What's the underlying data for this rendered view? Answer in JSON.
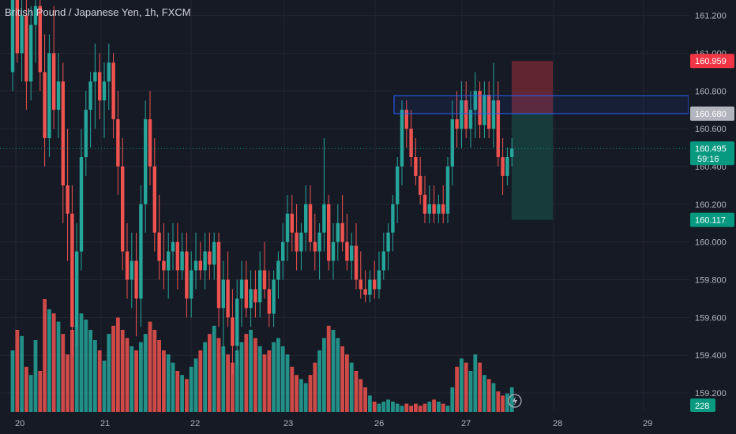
{
  "header": {
    "title": "British Pound / Japanese Yen, 1h, FXCM"
  },
  "colors": {
    "background": "#161a25",
    "up": "#26a69a",
    "down": "#ef5350",
    "grid": "#242733",
    "zone": "#2962ff",
    "stop": "#7a2a36",
    "target": "#17423f"
  },
  "chart_data": {
    "type": "candlestick",
    "title": "British Pound / Japanese Yen, 1h, FXCM",
    "x_tick_labels": [
      "20",
      "21",
      "22",
      "23",
      "26",
      "27",
      "28",
      "29"
    ],
    "y_tick_labels": [
      "161.200",
      "161.000",
      "160.800",
      "160.600",
      "160.400",
      "160.200",
      "160.000",
      "159.800",
      "159.600",
      "159.400",
      "159.200"
    ],
    "ylim": [
      159.15,
      161.24
    ],
    "price_badges": [
      {
        "label": "160.959",
        "value": 160.959,
        "color": "#f23645"
      },
      {
        "label": "160.680",
        "value": 160.68,
        "color": "#b2b5be"
      },
      {
        "label": "160.495",
        "value": 160.495,
        "color": "#089981",
        "sub": "59:16"
      },
      {
        "label": "160.117",
        "value": 160.117,
        "color": "#089981"
      }
    ],
    "volume_badge": "228",
    "resistance_zone": [
      160.68,
      160.775
    ],
    "position": {
      "entry": 160.68,
      "stop": 160.959,
      "target": 160.117
    },
    "last_price": 160.495,
    "candles": [
      [
        160.9,
        161.45,
        160.8,
        161.35
      ],
      [
        161.35,
        161.45,
        160.95,
        161.0
      ],
      [
        161.0,
        161.3,
        160.85,
        161.2
      ],
      [
        161.2,
        161.35,
        160.7,
        160.85
      ],
      [
        160.85,
        161.25,
        160.75,
        161.15
      ],
      [
        161.15,
        161.4,
        160.95,
        161.25
      ],
      [
        161.25,
        161.4,
        160.8,
        160.9
      ],
      [
        160.9,
        161.1,
        160.4,
        160.55
      ],
      [
        160.55,
        161.1,
        160.45,
        161.0
      ],
      [
        161.0,
        161.25,
        160.6,
        160.7
      ],
      [
        160.7,
        161.0,
        160.55,
        160.85
      ],
      [
        160.85,
        160.95,
        160.1,
        160.3
      ],
      [
        160.3,
        160.6,
        159.9,
        160.15
      ],
      [
        160.15,
        160.3,
        159.4,
        159.55
      ],
      [
        159.55,
        160.1,
        159.45,
        159.95
      ],
      [
        159.95,
        160.6,
        159.85,
        160.45
      ],
      [
        160.45,
        160.8,
        160.35,
        160.7
      ],
      [
        160.7,
        160.9,
        160.5,
        160.85
      ],
      [
        160.85,
        161.05,
        160.6,
        160.9
      ],
      [
        160.9,
        161.0,
        160.65,
        160.75
      ],
      [
        160.75,
        160.95,
        160.55,
        160.85
      ],
      [
        160.85,
        161.05,
        160.7,
        160.95
      ],
      [
        160.95,
        161.0,
        160.55,
        160.65
      ],
      [
        160.65,
        160.8,
        160.25,
        160.4
      ],
      [
        160.4,
        160.55,
        159.85,
        159.95
      ],
      [
        159.95,
        160.1,
        159.7,
        159.8
      ],
      [
        159.8,
        160.05,
        159.65,
        159.9
      ],
      [
        159.9,
        160.05,
        159.5,
        159.7
      ],
      [
        159.7,
        160.3,
        159.55,
        160.2
      ],
      [
        160.2,
        160.75,
        160.05,
        160.65
      ],
      [
        160.65,
        160.8,
        160.3,
        160.4
      ],
      [
        160.4,
        160.55,
        159.95,
        160.05
      ],
      [
        160.05,
        160.25,
        159.8,
        159.9
      ],
      [
        159.9,
        160.1,
        159.75,
        159.85
      ],
      [
        159.85,
        160.05,
        159.7,
        159.95
      ],
      [
        159.95,
        160.1,
        159.85,
        160.0
      ],
      [
        160.0,
        160.1,
        159.75,
        159.85
      ],
      [
        159.85,
        160.05,
        159.8,
        159.95
      ],
      [
        159.95,
        160.05,
        159.6,
        159.7
      ],
      [
        159.7,
        159.95,
        159.6,
        159.85
      ],
      [
        159.85,
        160.05,
        159.75,
        159.9
      ],
      [
        159.9,
        160.0,
        159.8,
        159.85
      ],
      [
        159.85,
        160.05,
        159.75,
        159.95
      ],
      [
        159.95,
        160.05,
        159.8,
        159.88
      ],
      [
        159.88,
        160.05,
        159.8,
        160.0
      ],
      [
        160.0,
        160.05,
        159.55,
        159.65
      ],
      [
        159.65,
        159.9,
        159.4,
        159.8
      ],
      [
        159.8,
        159.95,
        159.55,
        159.6
      ],
      [
        159.6,
        159.75,
        159.3,
        159.45
      ],
      [
        159.45,
        159.8,
        159.35,
        159.7
      ],
      [
        159.7,
        159.9,
        159.55,
        159.8
      ],
      [
        159.8,
        159.9,
        159.6,
        159.65
      ],
      [
        159.65,
        159.85,
        159.55,
        159.75
      ],
      [
        159.75,
        159.85,
        159.6,
        159.68
      ],
      [
        159.68,
        159.95,
        159.6,
        159.85
      ],
      [
        159.85,
        160.0,
        159.7,
        159.75
      ],
      [
        159.75,
        159.85,
        159.55,
        159.62
      ],
      [
        159.62,
        159.85,
        159.55,
        159.8
      ],
      [
        159.8,
        159.95,
        159.7,
        159.9
      ],
      [
        159.9,
        160.1,
        159.8,
        160.0
      ],
      [
        160.0,
        160.25,
        159.9,
        160.15
      ],
      [
        160.15,
        160.25,
        159.95,
        160.05
      ],
      [
        160.05,
        160.2,
        159.85,
        159.95
      ],
      [
        159.95,
        160.1,
        159.85,
        160.05
      ],
      [
        160.05,
        160.3,
        159.95,
        160.2
      ],
      [
        160.2,
        160.3,
        159.95,
        160.0
      ],
      [
        160.0,
        160.15,
        159.85,
        159.95
      ],
      [
        159.95,
        160.1,
        159.8,
        160.05
      ],
      [
        160.05,
        160.55,
        159.95,
        160.2
      ],
      [
        160.2,
        160.25,
        159.85,
        159.9
      ],
      [
        159.9,
        160.1,
        159.8,
        160.0
      ],
      [
        160.0,
        160.2,
        159.9,
        160.1
      ],
      [
        160.1,
        160.25,
        159.95,
        160.0
      ],
      [
        160.0,
        160.15,
        159.85,
        159.9
      ],
      [
        159.9,
        160.05,
        159.8,
        159.98
      ],
      [
        159.98,
        160.1,
        159.75,
        159.8
      ],
      [
        159.8,
        159.95,
        159.7,
        159.75
      ],
      [
        159.75,
        159.85,
        159.68,
        159.72
      ],
      [
        159.72,
        159.85,
        159.68,
        159.8
      ],
      [
        159.8,
        159.9,
        159.7,
        159.75
      ],
      [
        159.75,
        159.95,
        159.7,
        159.85
      ],
      [
        159.85,
        160.05,
        159.8,
        159.95
      ],
      [
        159.95,
        160.1,
        159.85,
        160.05
      ],
      [
        160.05,
        160.25,
        159.95,
        160.2
      ],
      [
        160.2,
        160.45,
        160.1,
        160.4
      ],
      [
        160.4,
        160.75,
        160.3,
        160.7
      ],
      [
        160.7,
        160.75,
        160.5,
        160.6
      ],
      [
        160.6,
        160.7,
        160.4,
        160.45
      ],
      [
        160.45,
        160.55,
        160.3,
        160.35
      ],
      [
        160.35,
        160.45,
        160.2,
        160.25
      ],
      [
        160.25,
        160.35,
        160.1,
        160.15
      ],
      [
        160.15,
        160.3,
        160.1,
        160.2
      ],
      [
        160.2,
        160.3,
        160.1,
        160.15
      ],
      [
        160.15,
        160.25,
        160.1,
        160.2
      ],
      [
        160.2,
        160.3,
        160.1,
        160.15
      ],
      [
        160.15,
        160.45,
        160.1,
        160.4
      ],
      [
        160.4,
        160.75,
        160.3,
        160.65
      ],
      [
        160.65,
        160.8,
        160.5,
        160.6
      ],
      [
        160.6,
        160.85,
        160.5,
        160.75
      ],
      [
        160.75,
        160.85,
        160.55,
        160.6
      ],
      [
        160.6,
        160.8,
        160.5,
        160.7
      ],
      [
        160.7,
        160.9,
        160.55,
        160.8
      ],
      [
        160.8,
        160.85,
        160.55,
        160.62
      ],
      [
        160.62,
        160.85,
        160.55,
        160.78
      ],
      [
        160.78,
        160.85,
        160.55,
        160.6
      ],
      [
        160.6,
        160.95,
        160.5,
        160.75
      ],
      [
        160.75,
        160.85,
        160.4,
        160.45
      ],
      [
        160.45,
        160.55,
        160.25,
        160.35
      ],
      [
        160.35,
        160.5,
        160.3,
        160.45
      ],
      [
        160.45,
        160.55,
        160.4,
        160.495
      ]
    ],
    "volumes": [
      30,
      40,
      37,
      22,
      18,
      35,
      20,
      55,
      50,
      48,
      44,
      38,
      28,
      40,
      42,
      48,
      45,
      40,
      35,
      30,
      25,
      38,
      42,
      46,
      40,
      36,
      32,
      30,
      34,
      38,
      44,
      40,
      35,
      30,
      28,
      24,
      20,
      18,
      16,
      22,
      26,
      30,
      34,
      38,
      42,
      36,
      32,
      28,
      24,
      30,
      34,
      38,
      40,
      36,
      32,
      28,
      30,
      34,
      36,
      32,
      28,
      22,
      18,
      16,
      14,
      18,
      24,
      30,
      36,
      42,
      40,
      36,
      32,
      28,
      24,
      20,
      16,
      12,
      8,
      5,
      4,
      5,
      6,
      5,
      4,
      3,
      4,
      3,
      4,
      3,
      4,
      5,
      6,
      5,
      4,
      3,
      12,
      22,
      26,
      24,
      20,
      28,
      24,
      18,
      16,
      14,
      10,
      8,
      9,
      12
    ]
  }
}
